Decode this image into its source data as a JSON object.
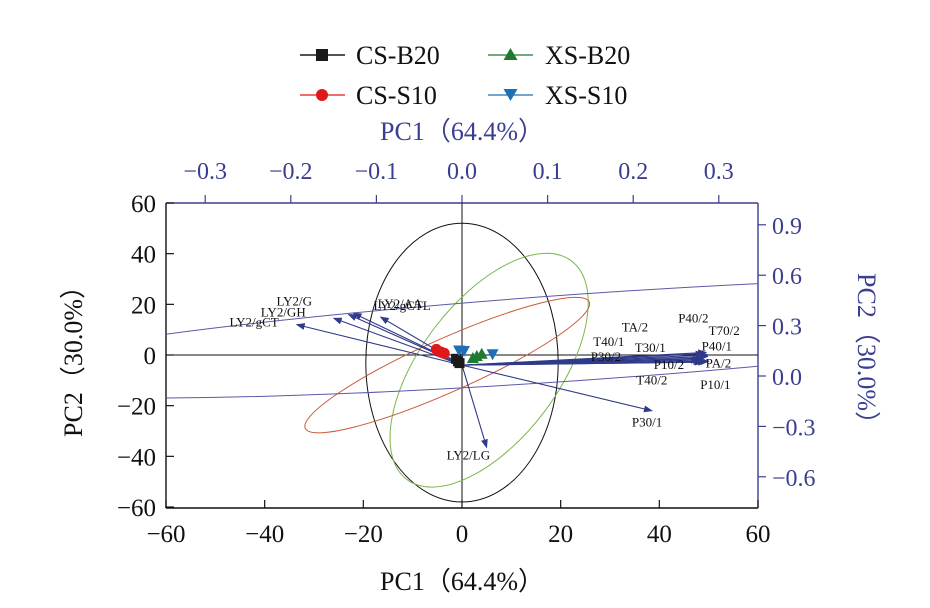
{
  "colors": {
    "axis_black": "#111111",
    "axis_blue": "#3b3f8f",
    "loading_arrow": "#2f3a8a",
    "cs_b20": "#1a1a1a",
    "cs_s10": "#e01818",
    "xs_b20": "#1e7a2e",
    "xs_s10": "#1f6fb3",
    "ellipse_cs_s10": "#c85a3a",
    "ellipse_xs_b20": "#7ab84a",
    "ellipse_xs_s10": "#5a5aa8",
    "ellipse_cs_b20": "#111111"
  },
  "chart_data": {
    "type": "scatter",
    "subtype": "pca-biplot",
    "legend": [
      {
        "name": "CS-B20",
        "marker": "square",
        "color": "#1a1a1a"
      },
      {
        "name": "XS-B20",
        "marker": "triangle-up",
        "color": "#1e7a2e"
      },
      {
        "name": "CS-S10",
        "marker": "circle",
        "color": "#e01818"
      },
      {
        "name": "XS-S10",
        "marker": "triangle-down",
        "color": "#1f6fb3"
      }
    ],
    "legend_position": "top-center",
    "axes": {
      "bottom": {
        "label": "PC1（64.4%）",
        "range": [
          -60,
          60
        ],
        "ticks": [
          "−60",
          "−40",
          "−20",
          "0",
          "20",
          "40",
          "60"
        ],
        "tick_values": [
          -60,
          -40,
          -20,
          0,
          20,
          40,
          60
        ]
      },
      "left": {
        "label": "PC2（30.0%）",
        "range": [
          -60,
          60
        ],
        "ticks": [
          "−60",
          "−40",
          "−20",
          "0",
          "20",
          "40",
          "60"
        ],
        "tick_values": [
          -60,
          -40,
          -20,
          0,
          20,
          40,
          60
        ]
      },
      "top": {
        "label": "PC1（64.4%）",
        "ticks": [
          "−0.3",
          "−0.2",
          "−0.1",
          "0.0",
          "0.1",
          "0.2",
          "0.3"
        ],
        "tick_values": [
          -0.3,
          -0.2,
          -0.1,
          0.0,
          0.1,
          0.2,
          0.3
        ]
      },
      "right": {
        "label": "PC2（30.0%）",
        "ticks": [
          "0.9",
          "0.6",
          "0.3",
          "0.0",
          "−0.3",
          "−0.6"
        ],
        "tick_values": [
          0.9,
          0.6,
          0.3,
          0.0,
          -0.3,
          -0.6
        ]
      }
    },
    "scores": [
      {
        "series": "CS-B20",
        "points": [
          [
            -1.2,
            -1.5
          ],
          [
            -0.8,
            -2.5
          ],
          [
            -0.5,
            -3.2
          ]
        ]
      },
      {
        "series": "CS-S10",
        "points": [
          [
            -5.2,
            2.2
          ],
          [
            -4.3,
            1.2
          ],
          [
            -3.6,
            0.7
          ]
        ]
      },
      {
        "series": "XS-B20",
        "points": [
          [
            2.2,
            -1.2
          ],
          [
            3.0,
            -0.4
          ],
          [
            4.0,
            0.5
          ]
        ]
      },
      {
        "series": "XS-S10",
        "points": [
          [
            -0.6,
            1.8
          ],
          [
            0.4,
            1.6
          ],
          [
            6.2,
            0.3
          ]
        ]
      }
    ],
    "loadings_origin": [
      0,
      -4
    ],
    "loadings": [
      {
        "label": "LY2/G",
        "end": [
          -23.0,
          16.0
        ]
      },
      {
        "label": "LY2/AA",
        "end": [
          -16.5,
          15.0
        ]
      },
      {
        "label": "LY2/GH",
        "end": [
          -26.0,
          14.5
        ]
      },
      {
        "label": "LY2/gCTL",
        "end": [
          -22.0,
          16.5
        ]
      },
      {
        "label": "LY2/gCT",
        "end": [
          -33.5,
          12.0
        ]
      },
      {
        "label": "P40/2",
        "end": [
          49.5,
          1.0
        ]
      },
      {
        "label": "T70/2",
        "end": [
          50.0,
          0.0
        ]
      },
      {
        "label": "TA/2",
        "end": [
          49.0,
          0.5
        ]
      },
      {
        "label": "P40/1",
        "end": [
          49.8,
          -0.6
        ]
      },
      {
        "label": "T40/1",
        "end": [
          48.5,
          -1.5
        ]
      },
      {
        "label": "T30/1",
        "end": [
          49.0,
          -1.2
        ]
      },
      {
        "label": "PA/2",
        "end": [
          50.0,
          -2.5
        ]
      },
      {
        "label": "P30/2",
        "end": [
          48.0,
          -2.0
        ]
      },
      {
        "label": "P10/2",
        "end": [
          48.8,
          -2.8
        ]
      },
      {
        "label": "T40/2",
        "end": [
          48.5,
          -2.6
        ]
      },
      {
        "label": "P10/1",
        "end": [
          49.5,
          -2.8
        ]
      },
      {
        "label": "P30/1",
        "end": [
          38.5,
          -22.0
        ]
      },
      {
        "label": "LY2/LG",
        "end": [
          5.0,
          -36.5
        ]
      }
    ],
    "ellipses": [
      {
        "series": "CS-B20",
        "center": [
          0,
          -3
        ],
        "rx": 19.5,
        "ry": 55,
        "rotation_deg": 0
      },
      {
        "series": "XS-B20",
        "center": [
          5.5,
          -6
        ],
        "rx": 14.0,
        "ry": 54,
        "rotation_deg": 37
      },
      {
        "series": "CS-S10",
        "center": [
          -3,
          -4
        ],
        "rx": 31.5,
        "ry": 10.5,
        "rotation_deg": -24
      },
      {
        "series": "XS-S10",
        "center": [
          24,
          7.0
        ],
        "rx": 125,
        "ry": 17.0,
        "rotation_deg": -4
      }
    ]
  }
}
